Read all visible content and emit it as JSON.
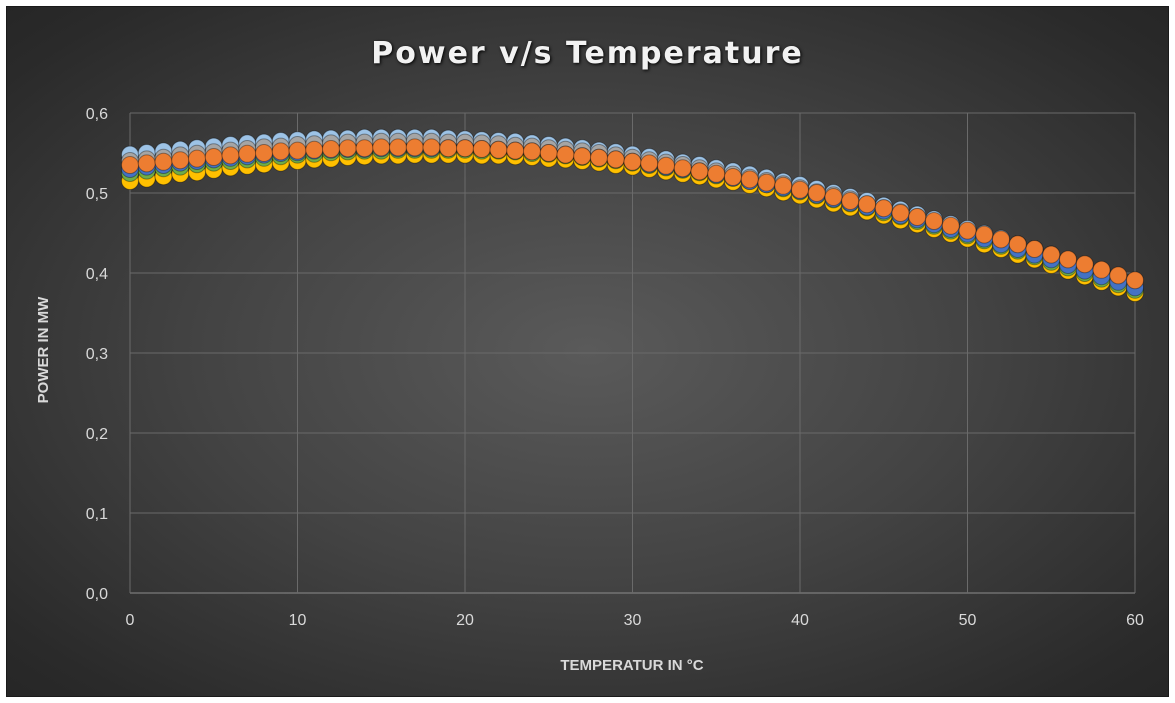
{
  "chart_data": {
    "type": "scatter",
    "title": "Power v/s Temperature",
    "xlabel": "TEMPERATUR IN °C",
    "ylabel": "POWER IN MW",
    "xlim": [
      0,
      60
    ],
    "ylim": [
      0,
      0.6
    ],
    "x_ticks": [
      "0",
      "10",
      "20",
      "30",
      "40",
      "50",
      "60"
    ],
    "y_ticks": [
      "0,0",
      "0,1",
      "0,2",
      "0,3",
      "0,4",
      "0,5",
      "0,6"
    ],
    "grid": true,
    "legend": "none",
    "x": [
      0,
      1,
      2,
      3,
      4,
      5,
      6,
      7,
      8,
      9,
      10,
      11,
      12,
      13,
      14,
      15,
      16,
      17,
      18,
      19,
      20,
      21,
      22,
      23,
      24,
      25,
      26,
      27,
      28,
      29,
      30,
      31,
      32,
      33,
      34,
      35,
      36,
      37,
      38,
      39,
      40,
      41,
      42,
      43,
      44,
      45,
      46,
      47,
      48,
      49,
      50,
      51,
      52,
      53,
      54,
      55,
      56,
      57,
      58,
      59,
      60
    ],
    "series": [
      {
        "color": "#5b9bd5",
        "values": [
          0.545,
          0.547,
          0.549,
          0.551,
          0.553,
          0.555,
          0.557,
          0.559,
          0.56,
          0.562,
          0.563,
          0.564,
          0.564,
          0.565,
          0.565,
          0.565,
          0.565,
          0.565,
          0.565,
          0.564,
          0.563,
          0.562,
          0.561,
          0.559,
          0.558,
          0.556,
          0.554,
          0.552,
          0.549,
          0.547,
          0.544,
          0.541,
          0.537,
          0.534,
          0.53,
          0.526,
          0.522,
          0.518,
          0.514,
          0.509,
          0.505,
          0.5,
          0.495,
          0.49,
          0.484,
          0.479,
          0.473,
          0.467,
          0.461,
          0.455,
          0.449,
          0.443,
          0.436,
          0.429,
          0.423,
          0.416,
          0.409,
          0.402,
          0.395,
          0.388,
          0.38
        ]
      },
      {
        "color": "#9dc3e6",
        "values": [
          0.548,
          0.55,
          0.552,
          0.554,
          0.556,
          0.558,
          0.56,
          0.562,
          0.563,
          0.565,
          0.566,
          0.567,
          0.568,
          0.568,
          0.569,
          0.569,
          0.569,
          0.569,
          0.569,
          0.568,
          0.567,
          0.566,
          0.565,
          0.564,
          0.562,
          0.56,
          0.558,
          0.556,
          0.553,
          0.551,
          0.548,
          0.545,
          0.542,
          0.538,
          0.535,
          0.531,
          0.527,
          0.523,
          0.519,
          0.514,
          0.51,
          0.505,
          0.5,
          0.495,
          0.49,
          0.484,
          0.479,
          0.473,
          0.467,
          0.461,
          0.455,
          0.449,
          0.443,
          0.436,
          0.43,
          0.423,
          0.416,
          0.409,
          0.402,
          0.395,
          0.388
        ]
      },
      {
        "color": "#a5a5a5",
        "values": [
          0.54,
          0.542,
          0.544,
          0.547,
          0.549,
          0.551,
          0.553,
          0.555,
          0.557,
          0.558,
          0.56,
          0.561,
          0.562,
          0.563,
          0.563,
          0.564,
          0.564,
          0.564,
          0.564,
          0.563,
          0.563,
          0.562,
          0.561,
          0.559,
          0.558,
          0.556,
          0.554,
          0.552,
          0.55,
          0.547,
          0.544,
          0.541,
          0.538,
          0.535,
          0.531,
          0.527,
          0.523,
          0.519,
          0.515,
          0.511,
          0.506,
          0.501,
          0.497,
          0.492,
          0.486,
          0.481,
          0.476,
          0.47,
          0.464,
          0.458,
          0.452,
          0.446,
          0.44,
          0.433,
          0.427,
          0.42,
          0.414,
          0.407,
          0.4,
          0.393,
          0.386
        ]
      },
      {
        "color": "#ffc000",
        "values": [
          0.515,
          0.518,
          0.521,
          0.524,
          0.526,
          0.529,
          0.532,
          0.534,
          0.536,
          0.538,
          0.54,
          0.542,
          0.543,
          0.545,
          0.546,
          0.547,
          0.547,
          0.548,
          0.548,
          0.548,
          0.548,
          0.547,
          0.547,
          0.546,
          0.545,
          0.543,
          0.542,
          0.54,
          0.538,
          0.535,
          0.533,
          0.53,
          0.527,
          0.524,
          0.521,
          0.517,
          0.514,
          0.51,
          0.506,
          0.501,
          0.497,
          0.492,
          0.487,
          0.482,
          0.477,
          0.472,
          0.466,
          0.461,
          0.455,
          0.449,
          0.443,
          0.436,
          0.43,
          0.423,
          0.417,
          0.41,
          0.403,
          0.396,
          0.389,
          0.382,
          0.375
        ]
      },
      {
        "color": "#70ad47",
        "values": [
          0.525,
          0.528,
          0.531,
          0.533,
          0.536,
          0.538,
          0.54,
          0.542,
          0.544,
          0.546,
          0.548,
          0.549,
          0.551,
          0.552,
          0.553,
          0.553,
          0.554,
          0.554,
          0.554,
          0.554,
          0.554,
          0.553,
          0.553,
          0.552,
          0.55,
          0.549,
          0.547,
          0.545,
          0.543,
          0.541,
          0.538,
          0.535,
          0.532,
          0.529,
          0.526,
          0.522,
          0.519,
          0.515,
          0.511,
          0.506,
          0.502,
          0.497,
          0.492,
          0.487,
          0.482,
          0.476,
          0.471,
          0.465,
          0.459,
          0.453,
          0.447,
          0.441,
          0.434,
          0.428,
          0.421,
          0.414,
          0.407,
          0.4,
          0.393,
          0.386,
          0.379
        ]
      },
      {
        "color": "#4472c4",
        "values": [
          0.53,
          0.533,
          0.535,
          0.538,
          0.54,
          0.542,
          0.544,
          0.546,
          0.548,
          0.55,
          0.551,
          0.553,
          0.554,
          0.555,
          0.555,
          0.556,
          0.556,
          0.556,
          0.556,
          0.556,
          0.556,
          0.555,
          0.554,
          0.553,
          0.552,
          0.55,
          0.548,
          0.546,
          0.544,
          0.542,
          0.539,
          0.536,
          0.533,
          0.53,
          0.527,
          0.523,
          0.519,
          0.515,
          0.511,
          0.507,
          0.503,
          0.498,
          0.493,
          0.488,
          0.483,
          0.478,
          0.472,
          0.467,
          0.461,
          0.455,
          0.449,
          0.443,
          0.436,
          0.43,
          0.423,
          0.417,
          0.41,
          0.403,
          0.396,
          0.389,
          0.382
        ]
      },
      {
        "color": "#ed7d31",
        "values": [
          0.535,
          0.537,
          0.539,
          0.541,
          0.543,
          0.545,
          0.547,
          0.549,
          0.55,
          0.552,
          0.553,
          0.554,
          0.555,
          0.556,
          0.556,
          0.557,
          0.557,
          0.557,
          0.557,
          0.556,
          0.556,
          0.555,
          0.554,
          0.553,
          0.552,
          0.55,
          0.548,
          0.546,
          0.544,
          0.542,
          0.539,
          0.537,
          0.534,
          0.531,
          0.527,
          0.524,
          0.52,
          0.517,
          0.513,
          0.509,
          0.504,
          0.5,
          0.495,
          0.49,
          0.486,
          0.481,
          0.475,
          0.47,
          0.465,
          0.459,
          0.453,
          0.448,
          0.442,
          0.436,
          0.43,
          0.423,
          0.417,
          0.411,
          0.404,
          0.397,
          0.391
        ]
      }
    ]
  }
}
